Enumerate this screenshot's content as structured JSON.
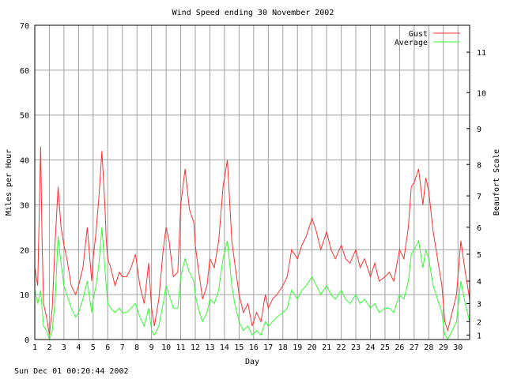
{
  "footer": "Sun Dec 01 00:20:44 2002",
  "chart_data": {
    "type": "line",
    "title": "Wind Speed ending 30 November 2002",
    "xlabel": "Day",
    "ylabel": "Miles per Hour",
    "y2label": "Beaufort Scale",
    "xlim": [
      1,
      30.8
    ],
    "ylim": [
      0,
      70
    ],
    "grid": true,
    "legend_position": "top-right",
    "x_ticks": [
      "1",
      "2",
      "3",
      "4",
      "5",
      "6",
      "7",
      "8",
      "9",
      "10",
      "11",
      "12",
      "13",
      "14",
      "15",
      "16",
      "17",
      "18",
      "19",
      "20",
      "21",
      "22",
      "23",
      "24",
      "25",
      "26",
      "27",
      "28",
      "29",
      "30"
    ],
    "y_ticks": [
      "0",
      "10",
      "20",
      "30",
      "40",
      "50",
      "60",
      "70"
    ],
    "beaufort_ticks": [
      {
        "label": "1",
        "mph": 1
      },
      {
        "label": "2",
        "mph": 4
      },
      {
        "label": "3",
        "mph": 8
      },
      {
        "label": "4",
        "mph": 13
      },
      {
        "label": "5",
        "mph": 19
      },
      {
        "label": "6",
        "mph": 25
      },
      {
        "label": "7",
        "mph": 32
      },
      {
        "label": "8",
        "mph": 39
      },
      {
        "label": "9",
        "mph": 47
      },
      {
        "label": "10",
        "mph": 55
      },
      {
        "label": "11",
        "mph": 64
      }
    ],
    "colors": {
      "gust": "#ff3030",
      "average": "#30ff30",
      "grid": "#a0a0a0"
    },
    "series": [
      {
        "name": "Gust",
        "x": [
          1.0,
          1.2,
          1.4,
          1.5,
          1.6,
          1.8,
          2.0,
          2.2,
          2.4,
          2.6,
          2.8,
          3.0,
          3.2,
          3.5,
          3.8,
          4.0,
          4.3,
          4.6,
          4.9,
          5.0,
          5.2,
          5.4,
          5.6,
          5.8,
          5.9,
          6.0,
          6.2,
          6.5,
          6.8,
          7.0,
          7.3,
          7.6,
          7.9,
          8.2,
          8.5,
          8.8,
          9.0,
          9.2,
          9.5,
          9.8,
          10.0,
          10.2,
          10.5,
          10.8,
          11.0,
          11.3,
          11.6,
          11.9,
          12.0,
          12.2,
          12.5,
          12.8,
          13.0,
          13.3,
          13.6,
          13.9,
          14.2,
          14.5,
          14.7,
          15.0,
          15.3,
          15.6,
          15.9,
          16.2,
          16.5,
          16.8,
          17.0,
          17.3,
          17.6,
          18.0,
          18.3,
          18.6,
          19.0,
          19.3,
          19.6,
          20.0,
          20.3,
          20.6,
          21.0,
          21.3,
          21.6,
          22.0,
          22.3,
          22.6,
          23.0,
          23.3,
          23.6,
          24.0,
          24.3,
          24.6,
          25.0,
          25.3,
          25.6,
          26.0,
          26.3,
          26.6,
          26.8,
          27.0,
          27.3,
          27.6,
          27.8,
          28.0,
          28.3,
          28.6,
          28.9,
          29.1,
          29.3,
          29.6,
          29.9,
          30.2,
          30.5,
          30.8
        ],
        "values": [
          16,
          12,
          43,
          22,
          8,
          5,
          1,
          7,
          22,
          34,
          25,
          21,
          18,
          12,
          10,
          12,
          16,
          25,
          13,
          18,
          24,
          32,
          42,
          30,
          22,
          18,
          16,
          12,
          15,
          14,
          14,
          16,
          19,
          12,
          8,
          17,
          7,
          3,
          9,
          20,
          25,
          22,
          14,
          15,
          30,
          38,
          29,
          26,
          21,
          16,
          9,
          12,
          18,
          16,
          22,
          34,
          40,
          22,
          17,
          10,
          6,
          8,
          3,
          6,
          4,
          10,
          7,
          9,
          10,
          12,
          14,
          20,
          18,
          21,
          23,
          27,
          24,
          20,
          24,
          20,
          18,
          21,
          18,
          17,
          20,
          16,
          18,
          14,
          17,
          13,
          14,
          15,
          13,
          20,
          18,
          25,
          34,
          35,
          38,
          30,
          36,
          33,
          24,
          18,
          12,
          4,
          2,
          6,
          10,
          22,
          15,
          9
        ]
      },
      {
        "name": "Average",
        "x": [
          1.0,
          1.2,
          1.4,
          1.5,
          1.6,
          1.8,
          2.0,
          2.2,
          2.4,
          2.6,
          2.8,
          3.0,
          3.2,
          3.5,
          3.8,
          4.0,
          4.3,
          4.6,
          4.9,
          5.0,
          5.2,
          5.4,
          5.6,
          5.8,
          5.9,
          6.0,
          6.2,
          6.5,
          6.8,
          7.0,
          7.3,
          7.6,
          7.9,
          8.2,
          8.5,
          8.8,
          9.0,
          9.2,
          9.5,
          9.8,
          10.0,
          10.2,
          10.5,
          10.8,
          11.0,
          11.3,
          11.6,
          11.9,
          12.0,
          12.2,
          12.5,
          12.8,
          13.0,
          13.3,
          13.6,
          13.9,
          14.2,
          14.5,
          14.7,
          15.0,
          15.3,
          15.6,
          15.9,
          16.2,
          16.5,
          16.8,
          17.0,
          17.3,
          17.6,
          18.0,
          18.3,
          18.6,
          19.0,
          19.3,
          19.6,
          20.0,
          20.3,
          20.6,
          21.0,
          21.3,
          21.6,
          22.0,
          22.3,
          22.6,
          23.0,
          23.3,
          23.6,
          24.0,
          24.3,
          24.6,
          25.0,
          25.3,
          25.6,
          26.0,
          26.3,
          26.6,
          26.8,
          27.0,
          27.3,
          27.6,
          27.8,
          28.0,
          28.3,
          28.6,
          28.9,
          29.1,
          29.3,
          29.6,
          29.9,
          30.2,
          30.5,
          30.8
        ],
        "values": [
          11,
          8,
          11,
          7,
          3,
          2,
          0,
          2,
          9,
          23,
          17,
          12,
          10,
          7,
          5,
          6,
          9,
          13,
          6,
          9,
          12,
          17,
          25,
          16,
          12,
          8,
          7,
          6,
          7,
          6,
          6,
          7,
          8,
          5,
          3,
          7,
          2,
          1,
          3,
          8,
          12,
          10,
          7,
          7,
          14,
          18,
          15,
          13,
          10,
          7,
          4,
          6,
          9,
          8,
          11,
          18,
          22,
          12,
          8,
          4,
          2,
          3,
          1,
          2,
          1,
          4,
          3,
          4,
          5,
          6,
          7,
          11,
          9,
          11,
          12,
          14,
          12,
          10,
          12,
          10,
          9,
          11,
          9,
          8,
          10,
          8,
          9,
          7,
          8,
          6,
          7,
          7,
          6,
          10,
          9,
          13,
          19,
          20,
          22,
          16,
          20,
          18,
          12,
          9,
          6,
          1,
          0,
          2,
          4,
          13,
          8,
          4
        ]
      }
    ]
  }
}
